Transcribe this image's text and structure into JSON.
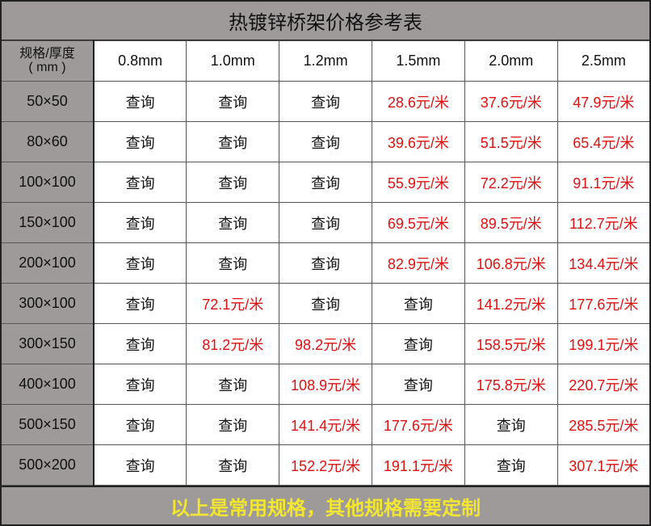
{
  "title": "热镀锌桥架价格参考表",
  "header": {
    "corner_line1": "规格/厚度",
    "corner_line2": "( mm )",
    "thicknesses": [
      "0.8mm",
      "1.0mm",
      "1.2mm",
      "1.5mm",
      "2.0mm",
      "2.5mm"
    ]
  },
  "colors": {
    "header_bg": "#9e9a9a",
    "price": "#e01010",
    "footer_text": "#f2e630"
  },
  "rows": [
    {
      "spec": "50×50",
      "cells": [
        "查询",
        "查询",
        "查询",
        "28.6元/米",
        "37.6元/米",
        "47.9元/米"
      ]
    },
    {
      "spec": "80×60",
      "cells": [
        "查询",
        "查询",
        "查询",
        "39.6元/米",
        "51.5元/米",
        "65.4元/米"
      ]
    },
    {
      "spec": "100×100",
      "cells": [
        "查询",
        "查询",
        "查询",
        "55.9元/米",
        "72.2元/米",
        "91.1元/米"
      ]
    },
    {
      "spec": "150×100",
      "cells": [
        "查询",
        "查询",
        "查询",
        "69.5元/米",
        "89.5元/米",
        "112.7元/米"
      ]
    },
    {
      "spec": "200×100",
      "cells": [
        "查询",
        "查询",
        "查询",
        "82.9元/米",
        "106.8元/米",
        "134.4元/米"
      ]
    },
    {
      "spec": "300×100",
      "cells": [
        "查询",
        "72.1元/米",
        "查询",
        "查询",
        "141.2元/米",
        "177.6元/米"
      ]
    },
    {
      "spec": "300×150",
      "cells": [
        "查询",
        "81.2元/米",
        "98.2元/米",
        "查询",
        "158.5元/米",
        "199.1元/米"
      ]
    },
    {
      "spec": "400×100",
      "cells": [
        "查询",
        "查询",
        "108.9元/米",
        "查询",
        "175.8元/米",
        "220.7元/米"
      ]
    },
    {
      "spec": "500×150",
      "cells": [
        "查询",
        "查询",
        "141.4元/米",
        "177.6元/米",
        "查询",
        "285.5元/米"
      ]
    },
    {
      "spec": "500×200",
      "cells": [
        "查询",
        "查询",
        "152.2元/米",
        "191.1元/米",
        "查询",
        "307.1元/米"
      ]
    }
  ],
  "footer": "以上是常用规格，其他规格需要定制"
}
